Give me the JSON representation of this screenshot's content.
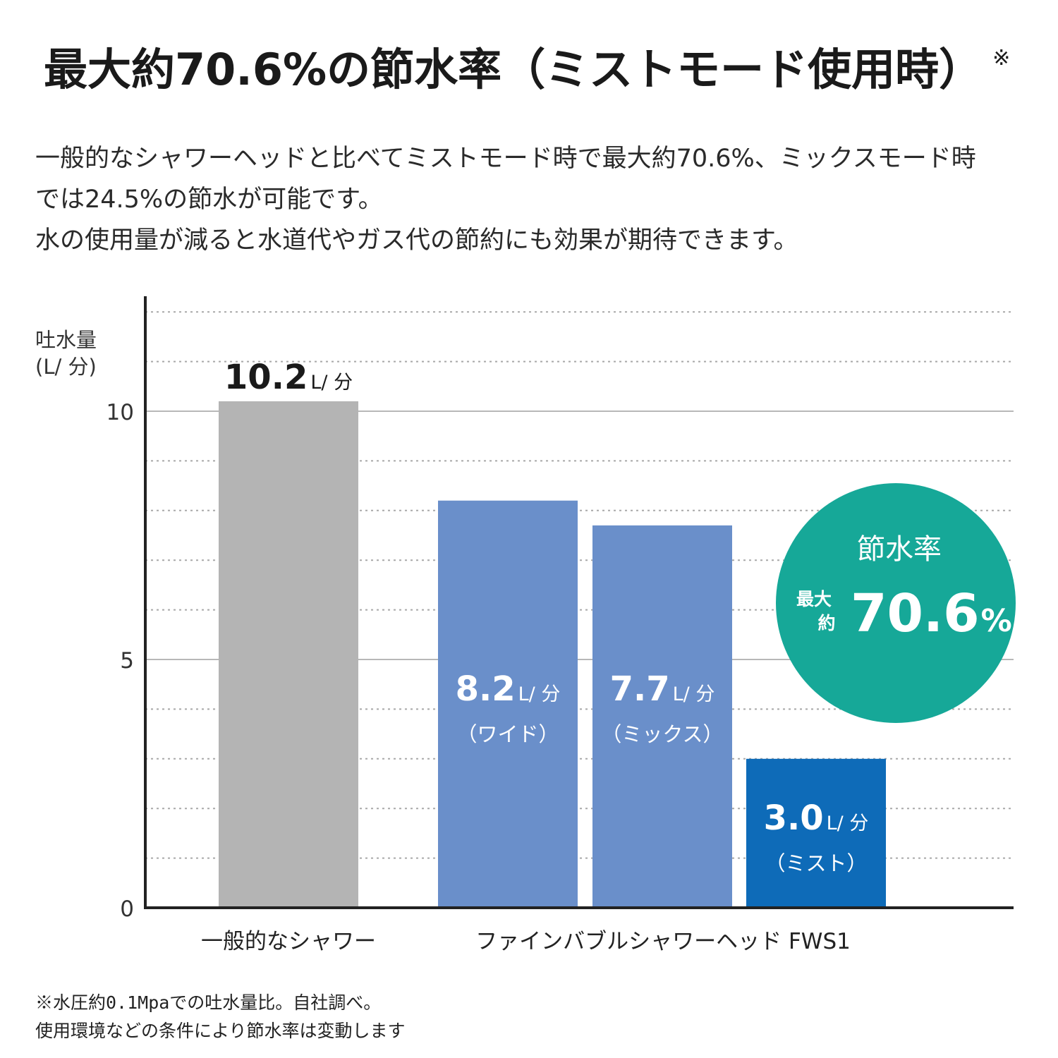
{
  "page": {
    "title": "最大約70.6%の節水率（ミストモード使用時）",
    "title_mark": "※",
    "description": [
      "一般的なシャワーヘッドと比べてミストモード時で最大約70.6%、ミックスモード時",
      "では24.5%の節水が可能です。",
      "水の使用量が減ると水道代やガス代の節約にも効果が期待できます。"
    ],
    "notes": [
      "※水圧約0.1Mpaでの吐水量比。自社調べ。",
      "使用環境などの条件により節水率は変動します"
    ]
  },
  "chart_data": {
    "type": "bar",
    "ylabel": [
      "吐水量",
      "(L/ 分)"
    ],
    "ylim": [
      0,
      12
    ],
    "yticks": [
      "0",
      "5",
      "10"
    ],
    "grid": "dotted every 1, solid at 5 and 10",
    "bars": [
      {
        "value": 10.2,
        "value_label": "10.2",
        "unit": "L/ 分",
        "mode": "",
        "color": "#b4b4b4"
      },
      {
        "value": 8.2,
        "value_label": "8.2",
        "unit": "L/ 分",
        "mode": "（ワイド）",
        "color": "#6a8fca"
      },
      {
        "value": 7.7,
        "value_label": "7.7",
        "unit": "L/ 分",
        "mode": "（ミックス）",
        "color": "#6a8fca"
      },
      {
        "value": 3.0,
        "value_label": "3.0",
        "unit": "L/ 分",
        "mode": "（ミスト）",
        "color": "#0e6bb8"
      }
    ],
    "groups": [
      {
        "label": "一般的なシャワー",
        "bars": [
          0
        ]
      },
      {
        "label": "ファインバブルシャワーヘッド FWS1",
        "bars": [
          1,
          2,
          3
        ]
      }
    ],
    "badge": {
      "title": "節水率",
      "prefix_line1": "最大",
      "prefix_line2": "約",
      "value": "70.6",
      "unit": "%",
      "color": "#16a898"
    }
  }
}
